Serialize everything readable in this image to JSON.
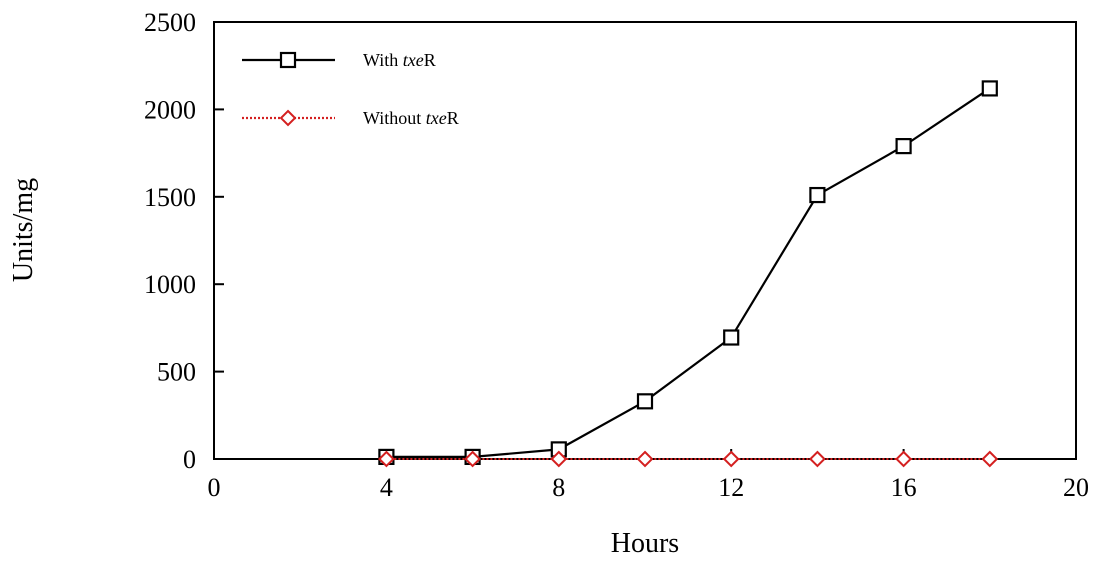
{
  "chart_data": {
    "type": "line",
    "title": "",
    "xlabel": "Hours",
    "ylabel": "Units/mg",
    "xlim": [
      0,
      20
    ],
    "ylim": [
      0,
      2500
    ],
    "xticks": [
      0,
      4,
      8,
      12,
      16,
      20
    ],
    "yticks": [
      0,
      500,
      1000,
      1500,
      2000,
      2500
    ],
    "grid": false,
    "legend_position": "top-left",
    "series": [
      {
        "name_prefix": "With ",
        "name_italic": "txe",
        "name_suffix": "R",
        "color": "#000000",
        "line_style": "solid",
        "marker": "square",
        "x": [
          4,
          6,
          8,
          10,
          12,
          14,
          16,
          18
        ],
        "y": [
          12,
          12,
          55,
          330,
          695,
          1510,
          1790,
          2120
        ]
      },
      {
        "name_prefix": "Without ",
        "name_italic": "txe",
        "name_suffix": "R",
        "color": "#d42020",
        "line_style": "dotted",
        "marker": "diamond",
        "x": [
          4,
          6,
          8,
          10,
          12,
          14,
          16,
          18
        ],
        "y": [
          0,
          0,
          0,
          0,
          0,
          0,
          0,
          0
        ]
      }
    ]
  }
}
